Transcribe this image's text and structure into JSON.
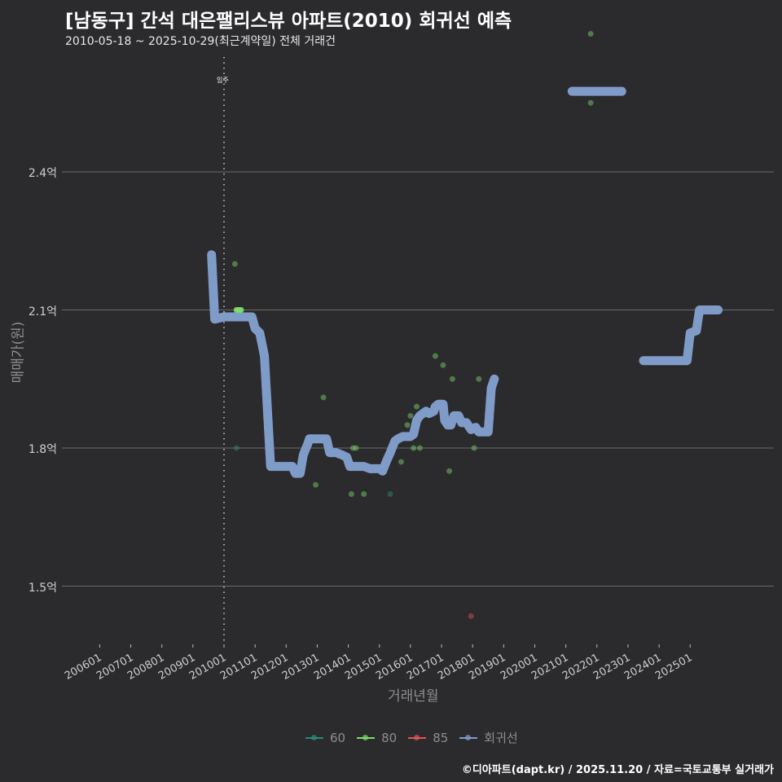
{
  "header": {
    "title": "[남동구] 간석 대은팰리스뷰 아파트(2010) 회귀선 예측",
    "subtitle": "2010-05-18 ~ 2025-10-29(최근계약일) 전체 거래건"
  },
  "footer": {
    "credit": "©디아파트(dapt.kr) / 2025.11.20 / 자료=국토교통부 실거래가"
  },
  "legend": {
    "items": [
      {
        "label": "60",
        "color": "#2a8c7c"
      },
      {
        "label": "80",
        "color": "#7ddc6c"
      },
      {
        "label": "85",
        "color": "#e05555"
      },
      {
        "label": "회귀선",
        "color": "#7f9cc8"
      }
    ]
  },
  "chart_data": {
    "type": "scatter",
    "title": "[남동구] 간석 대은팰리스뷰 아파트(2010) 회귀선 예측",
    "subtitle": "2010-05-18 ~ 2025-10-29(최근계약일) 전체 거래건",
    "xlabel": "거래년월",
    "ylabel": "매매가(원)",
    "x_ticks": [
      "200601",
      "200701",
      "200801",
      "200901",
      "201001",
      "201101",
      "201201",
      "201301",
      "201401",
      "201501",
      "201601",
      "201701",
      "201801",
      "201901",
      "202001",
      "202101",
      "202201",
      "202301",
      "202401",
      "202501"
    ],
    "y_ticks": [
      "1.5억",
      "1.8억",
      "2.1억",
      "2.4억"
    ],
    "ylim": [
      1.4,
      2.63
    ],
    "grid": "horizontal",
    "legend_position": "bottom",
    "annotation": {
      "label": "입주",
      "x": 2010.0
    },
    "series": [
      {
        "name": "60",
        "color": "#2a8c7c",
        "points": [
          {
            "x": 2010.4,
            "y": 1.8
          },
          {
            "x": 2015.35,
            "y": 1.7
          }
        ]
      },
      {
        "name": "80",
        "color": "#7ddc6c",
        "points": [
          {
            "x": 2010.35,
            "y": 2.2
          },
          {
            "x": 2010.4,
            "y": 2.1
          },
          {
            "x": 2010.45,
            "y": 2.1
          },
          {
            "x": 2010.5,
            "y": 2.1
          },
          {
            "x": 2010.55,
            "y": 2.1
          },
          {
            "x": 2012.95,
            "y": 1.72
          },
          {
            "x": 2013.2,
            "y": 1.91
          },
          {
            "x": 2014.1,
            "y": 1.7
          },
          {
            "x": 2014.15,
            "y": 1.8
          },
          {
            "x": 2014.25,
            "y": 1.8
          },
          {
            "x": 2014.5,
            "y": 1.7
          },
          {
            "x": 2015.7,
            "y": 1.77
          },
          {
            "x": 2015.9,
            "y": 1.85
          },
          {
            "x": 2016.0,
            "y": 1.87
          },
          {
            "x": 2016.1,
            "y": 1.8
          },
          {
            "x": 2016.2,
            "y": 1.89
          },
          {
            "x": 2016.3,
            "y": 1.8
          },
          {
            "x": 2016.8,
            "y": 2.0
          },
          {
            "x": 2017.05,
            "y": 1.98
          },
          {
            "x": 2017.35,
            "y": 1.95
          },
          {
            "x": 2017.25,
            "y": 1.75
          },
          {
            "x": 2018.05,
            "y": 1.8
          },
          {
            "x": 2018.2,
            "y": 1.95
          },
          {
            "x": 2021.8,
            "y": 2.55
          },
          {
            "x": 2021.8,
            "y": 2.7
          }
        ]
      },
      {
        "name": "85",
        "color": "#e05555",
        "points": [
          {
            "x": 2017.95,
            "y": 1.435
          }
        ]
      },
      {
        "name": "회귀선",
        "color": "#7f9cc8",
        "type": "line",
        "segments": [
          [
            [
              2009.6,
              2.22
            ],
            [
              2009.7,
              2.08
            ],
            [
              2010.0,
              2.085
            ],
            [
              2010.9,
              2.085
            ],
            [
              2011.0,
              2.06
            ],
            [
              2011.15,
              2.05
            ],
            [
              2011.3,
              2.0
            ],
            [
              2011.5,
              1.76
            ],
            [
              2012.0,
              1.76
            ],
            [
              2012.2,
              1.76
            ],
            [
              2012.3,
              1.745
            ],
            [
              2012.45,
              1.745
            ],
            [
              2012.55,
              1.785
            ],
            [
              2012.7,
              1.81
            ],
            [
              2012.75,
              1.82
            ],
            [
              2013.3,
              1.82
            ],
            [
              2013.4,
              1.79
            ],
            [
              2013.6,
              1.79
            ],
            [
              2013.8,
              1.785
            ],
            [
              2013.95,
              1.78
            ],
            [
              2014.05,
              1.76
            ],
            [
              2014.5,
              1.76
            ],
            [
              2014.7,
              1.755
            ],
            [
              2015.0,
              1.755
            ],
            [
              2015.1,
              1.75
            ],
            [
              2015.25,
              1.775
            ],
            [
              2015.35,
              1.79
            ],
            [
              2015.5,
              1.815
            ],
            [
              2015.6,
              1.82
            ],
            [
              2015.75,
              1.825
            ],
            [
              2016.0,
              1.825
            ],
            [
              2016.1,
              1.83
            ],
            [
              2016.2,
              1.86
            ],
            [
              2016.3,
              1.87
            ],
            [
              2016.5,
              1.88
            ],
            [
              2016.6,
              1.875
            ],
            [
              2016.75,
              1.88
            ],
            [
              2016.8,
              1.89
            ],
            [
              2016.9,
              1.895
            ],
            [
              2017.05,
              1.895
            ],
            [
              2017.1,
              1.86
            ],
            [
              2017.2,
              1.85
            ],
            [
              2017.3,
              1.85
            ],
            [
              2017.4,
              1.87
            ],
            [
              2017.55,
              1.87
            ],
            [
              2017.65,
              1.855
            ],
            [
              2017.8,
              1.855
            ],
            [
              2017.95,
              1.84
            ],
            [
              2018.1,
              1.845
            ],
            [
              2018.2,
              1.835
            ],
            [
              2018.5,
              1.835
            ],
            [
              2018.6,
              1.93
            ],
            [
              2018.7,
              1.95
            ]
          ],
          [
            [
              2021.2,
              2.575
            ],
            [
              2022.8,
              2.575
            ]
          ],
          [
            [
              2023.5,
              1.99
            ],
            [
              2024.9,
              1.99
            ],
            [
              2025.0,
              2.05
            ],
            [
              2025.2,
              2.055
            ],
            [
              2025.3,
              2.1
            ],
            [
              2025.9,
              2.1
            ]
          ]
        ]
      }
    ]
  }
}
